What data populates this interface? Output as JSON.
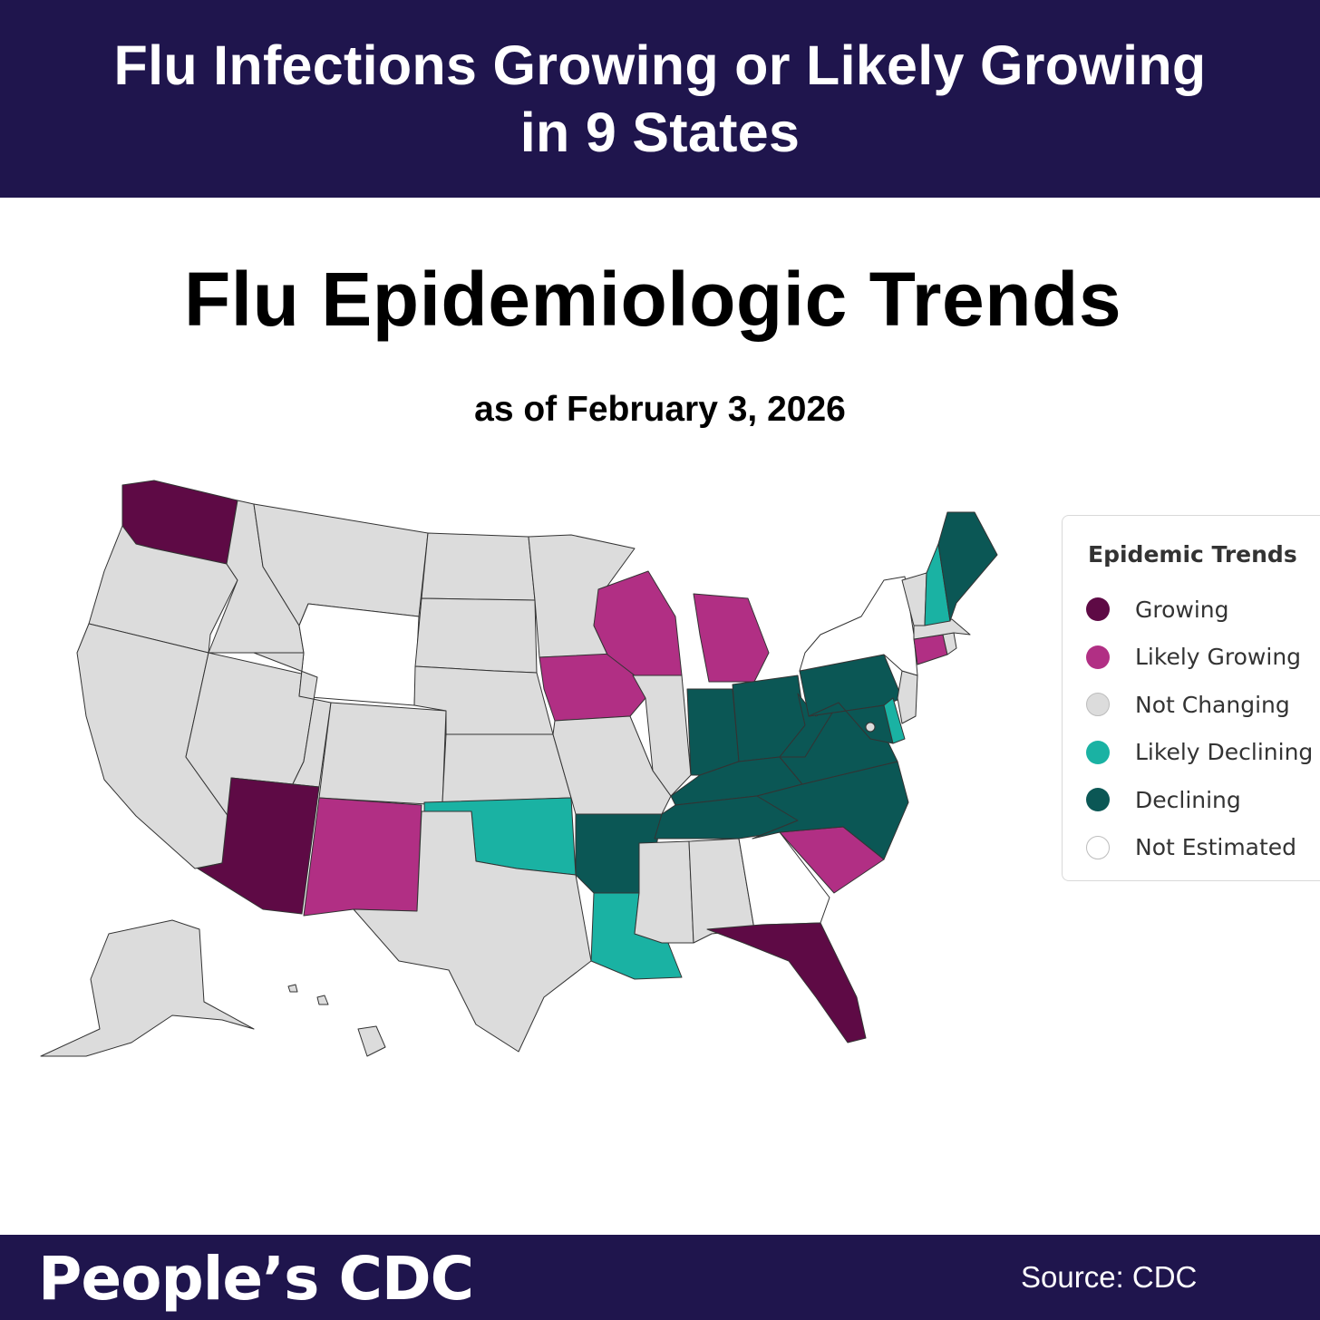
{
  "header": {
    "line1": "Flu Infections Growing or Likely Growing",
    "line2": "in 9 States"
  },
  "title": "Flu Epidemiologic Trends",
  "subtitle": "as of February 3, 2026",
  "legend": {
    "title": "Epidemic Trends",
    "items": [
      {
        "label": "Growing",
        "color": "#5e0a45"
      },
      {
        "label": "Likely Growing",
        "color": "#b12f84"
      },
      {
        "label": "Not Changing",
        "color": "#dcdcdc"
      },
      {
        "label": "Likely Declining",
        "color": "#1ab2a3"
      },
      {
        "label": "Declining",
        "color": "#0b5755"
      },
      {
        "label": "Not Estimated",
        "color": "#ffffff"
      }
    ]
  },
  "map_data": {
    "Growing": [
      "WA",
      "AZ",
      "FL"
    ],
    "Likely Growing": [
      "NM",
      "IA",
      "WI",
      "MI",
      "SC",
      "CT"
    ],
    "Not Changing": [
      "OR",
      "CA",
      "NV",
      "ID",
      "MT",
      "UT",
      "CO",
      "ND",
      "SD",
      "NE",
      "KS",
      "TX",
      "MN",
      "MO",
      "IL",
      "MS",
      "AL",
      "VT",
      "MA",
      "RI",
      "NJ",
      "AK",
      "HI",
      "DC"
    ],
    "Likely Declining": [
      "OK",
      "LA",
      "NH",
      "DE"
    ],
    "Declining": [
      "AR",
      "TN",
      "KY",
      "IN",
      "OH",
      "WV",
      "VA",
      "NC",
      "PA",
      "MD",
      "ME"
    ],
    "Not Estimated": [
      "WY",
      "GA",
      "NY"
    ]
  },
  "footer": {
    "brand": "People’s CDC",
    "source": "Source: CDC"
  }
}
